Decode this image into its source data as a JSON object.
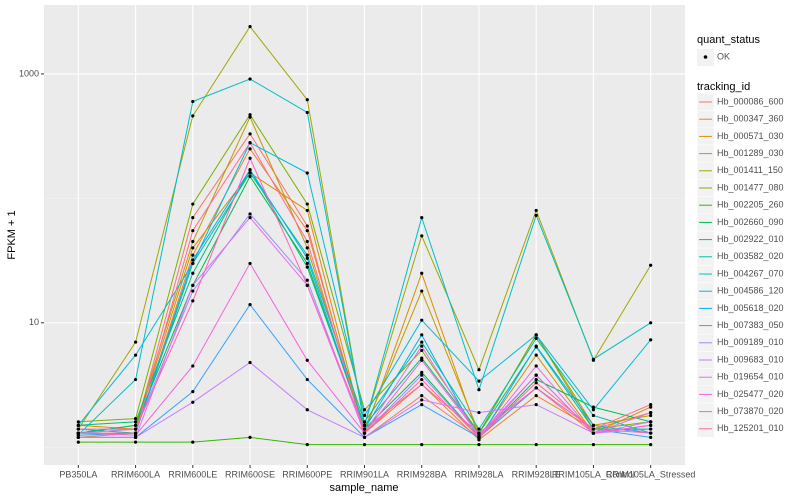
{
  "chart_data": {
    "type": "line",
    "x_label": "sample_name",
    "y_label": "FPKM + 1",
    "y_scale": "log",
    "categories": [
      "PB350LA",
      "RRIM600LA",
      "RRIM600LE",
      "RRIM600SE",
      "RRIM600PE",
      "RRIM901LA",
      "RRIM928BA",
      "RRIM928LA",
      "RRIM928LE",
      "RRIM105LA_Control",
      "RRIM105LA_Stressed"
    ],
    "ylim": [
      0.72,
      3580
    ],
    "yticks": [
      10,
      1000
    ],
    "minor_yticks": [
      1,
      100
    ],
    "grid": true,
    "point_color": "#000000",
    "shape_legend_title": "quant_status",
    "shape_legend_labels": [
      "OK"
    ],
    "color_legend_title": "tracking_id",
    "series": [
      {
        "name": "Hb_000086_600",
        "color": "#F8766D",
        "values": [
          1.3,
          1.4,
          70,
          330,
          60,
          1.2,
          2.6,
          1.2,
          3,
          1.3,
          1.5
        ]
      },
      {
        "name": "Hb_000347_360",
        "color": "#EA8331",
        "values": [
          1.2,
          1.3,
          35,
          250,
          55,
          1.3,
          3.2,
          1.15,
          2.6,
          1.4,
          1.9
        ]
      },
      {
        "name": "Hb_000571_030",
        "color": "#D89000",
        "values": [
          1.5,
          1.4,
          40,
          160,
          80,
          1.3,
          25,
          1.2,
          5.5,
          1.3,
          2.1
        ]
      },
      {
        "name": "Hb_001289_030",
        "color": "#C09B00",
        "values": [
          1.3,
          1.5,
          45,
          450,
          40,
          1.4,
          18,
          1.3,
          8,
          1.5,
          1.8
        ]
      },
      {
        "name": "Hb_001411_150",
        "color": "#A3A500",
        "values": [
          1.4,
          7,
          460,
          2400,
          620,
          1.5,
          50,
          4.2,
          80,
          5.0,
          29
        ]
      },
      {
        "name": "Hb_001477_080",
        "color": "#7CAE00",
        "values": [
          1.6,
          1.7,
          90,
          470,
          90,
          2.0,
          6,
          1.3,
          8,
          1.4,
          1.6
        ]
      },
      {
        "name": "Hb_002205_260",
        "color": "#39B600",
        "values": [
          1.1,
          1.1,
          1.1,
          1.2,
          1.05,
          1.05,
          1.05,
          1.05,
          1.05,
          1.05,
          1.05
        ]
      },
      {
        "name": "Hb_002660_090",
        "color": "#00BB4E",
        "values": [
          1.3,
          1.5,
          20,
          150,
          30,
          1.4,
          4,
          1.2,
          3.5,
          2.1,
          1.6
        ]
      },
      {
        "name": "Hb_002922_010",
        "color": "#00BF7D",
        "values": [
          1.5,
          1.6,
          25,
          170,
          28,
          1.5,
          5.2,
          1.3,
          6.4,
          1.4,
          1.4
        ]
      },
      {
        "name": "Hb_003582_020",
        "color": "#00C1A3",
        "values": [
          1.4,
          1.3,
          30,
          160,
          35,
          1.6,
          7.0,
          1.4,
          7.5,
          1.8,
          1.3
        ]
      },
      {
        "name": "Hb_004267_070",
        "color": "#00BFC4",
        "values": [
          1.26,
          3.5,
          600,
          910,
          490,
          1.5,
          70,
          2.9,
          73,
          5.1,
          10
        ]
      },
      {
        "name": "Hb_004586_120",
        "color": "#00BAE0",
        "values": [
          1.5,
          5.5,
          30,
          280,
          160,
          1.8,
          10.5,
          3.4,
          8,
          2.0,
          7.3
        ]
      },
      {
        "name": "Hb_005618_020",
        "color": "#00B0F6",
        "values": [
          1.25,
          1.3,
          32,
          170,
          33,
          1.4,
          8,
          1.15,
          6.5,
          1.5,
          1.3
        ]
      },
      {
        "name": "Hb_007383_050",
        "color": "#35A2FF",
        "values": [
          1.2,
          1.2,
          2.8,
          14,
          3.5,
          1.2,
          2.2,
          1.2,
          3.0,
          1.4,
          1.2
        ]
      },
      {
        "name": "Hb_009189_010",
        "color": "#9590FF",
        "values": [
          1.3,
          1.4,
          18,
          75,
          22,
          1.3,
          3.8,
          1.2,
          3.8,
          1.3,
          1.4
        ]
      },
      {
        "name": "Hb_009683_010",
        "color": "#C77CFF",
        "values": [
          1.2,
          1.2,
          2.3,
          4.8,
          2.0,
          1.2,
          2.4,
          1.9,
          2.2,
          1.3,
          1.6
        ]
      },
      {
        "name": "Hb_019654_010",
        "color": "#E76BF3",
        "values": [
          1.2,
          1.2,
          20,
          70,
          20,
          1.3,
          6.5,
          1.2,
          4.5,
          1.3,
          1.9
        ]
      },
      {
        "name": "Hb_025477_020",
        "color": "#FA62DB",
        "values": [
          1.3,
          1.25,
          4.5,
          30,
          5.0,
          1.3,
          5.0,
          1.25,
          3.8,
          1.3,
          1.5
        ]
      },
      {
        "name": "Hb_073870_020",
        "color": "#FF62BC",
        "values": [
          1.4,
          1.4,
          15,
          210,
          20,
          1.4,
          3.2,
          1.3,
          3.0,
          1.4,
          1.3
        ]
      },
      {
        "name": "Hb_125201_010",
        "color": "#FF6C91",
        "values": [
          1.3,
          1.3,
          55,
          280,
          45,
          1.3,
          3.5,
          1.2,
          3.3,
          1.4,
          2.2
        ]
      }
    ]
  }
}
